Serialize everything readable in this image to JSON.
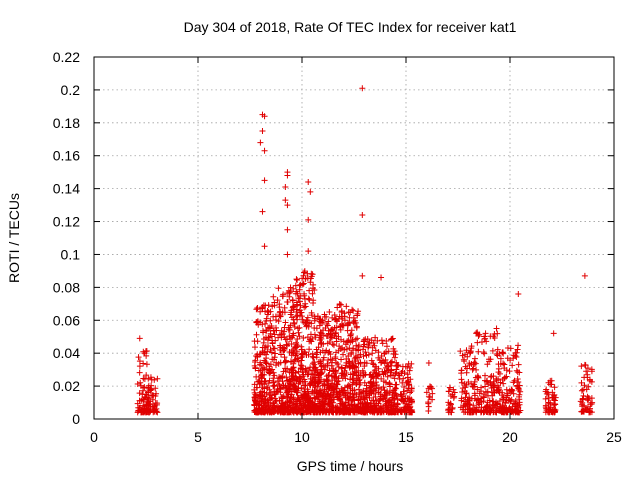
{
  "chart_data": {
    "type": "scatter",
    "title": "Day 304 of 2018, Rate Of TEC Index for receiver kat1",
    "xlabel": "GPS time / hours",
    "ylabel": "ROTI / TECUs",
    "xlim": [
      0,
      25
    ],
    "ylim": [
      0,
      0.22
    ],
    "x_ticks": [
      0,
      5,
      10,
      15,
      20,
      25
    ],
    "x_tick_labels": [
      "0",
      "5",
      "10",
      "15",
      "20",
      "25"
    ],
    "y_ticks": [
      0,
      0.02,
      0.04,
      0.06,
      0.08,
      0.1,
      0.12,
      0.14,
      0.16,
      0.18,
      0.2,
      0.22
    ],
    "y_tick_labels": [
      "0",
      "0.02",
      "0.04",
      "0.06",
      "0.08",
      "0.1",
      "0.12",
      "0.14",
      "0.16",
      "0.18",
      "0.2",
      "0.22"
    ],
    "grid": true,
    "marker": "+",
    "color": "#e00000",
    "notable_points": [
      {
        "x": 2.2,
        "y": 0.049
      },
      {
        "x": 8.1,
        "y": 0.185
      },
      {
        "x": 8.2,
        "y": 0.184
      },
      {
        "x": 8.1,
        "y": 0.175
      },
      {
        "x": 8.0,
        "y": 0.168
      },
      {
        "x": 8.2,
        "y": 0.163
      },
      {
        "x": 8.2,
        "y": 0.145
      },
      {
        "x": 8.1,
        "y": 0.126
      },
      {
        "x": 8.2,
        "y": 0.105
      },
      {
        "x": 9.3,
        "y": 0.15
      },
      {
        "x": 9.3,
        "y": 0.148
      },
      {
        "x": 9.2,
        "y": 0.141
      },
      {
        "x": 9.3,
        "y": 0.13
      },
      {
        "x": 9.2,
        "y": 0.133
      },
      {
        "x": 9.3,
        "y": 0.115
      },
      {
        "x": 9.3,
        "y": 0.1
      },
      {
        "x": 10.3,
        "y": 0.144
      },
      {
        "x": 10.4,
        "y": 0.138
      },
      {
        "x": 10.3,
        "y": 0.121
      },
      {
        "x": 10.3,
        "y": 0.102
      },
      {
        "x": 12.9,
        "y": 0.201
      },
      {
        "x": 12.9,
        "y": 0.124
      },
      {
        "x": 12.9,
        "y": 0.087
      },
      {
        "x": 13.8,
        "y": 0.086
      },
      {
        "x": 16.1,
        "y": 0.034
      },
      {
        "x": 20.4,
        "y": 0.076
      },
      {
        "x": 22.1,
        "y": 0.052
      },
      {
        "x": 23.6,
        "y": 0.087
      }
    ],
    "clusters": [
      {
        "x_range": [
          2.1,
          2.6
        ],
        "y_range": [
          0.004,
          0.042
        ],
        "density": 70
      },
      {
        "x_range": [
          2.5,
          3.05
        ],
        "y_range": [
          0.004,
          0.028
        ],
        "density": 55
      },
      {
        "x_range": [
          7.7,
          8.6
        ],
        "y_range": [
          0.004,
          0.07
        ],
        "density": 260
      },
      {
        "x_range": [
          8.6,
          9.7
        ],
        "y_range": [
          0.004,
          0.08
        ],
        "density": 320
      },
      {
        "x_range": [
          9.7,
          10.6
        ],
        "y_range": [
          0.004,
          0.09
        ],
        "density": 300
      },
      {
        "x_range": [
          10.6,
          11.6
        ],
        "y_range": [
          0.004,
          0.065
        ],
        "density": 300
      },
      {
        "x_range": [
          11.6,
          12.7
        ],
        "y_range": [
          0.004,
          0.07
        ],
        "density": 300
      },
      {
        "x_range": [
          12.7,
          13.6
        ],
        "y_range": [
          0.004,
          0.05
        ],
        "density": 200
      },
      {
        "x_range": [
          13.6,
          14.5
        ],
        "y_range": [
          0.004,
          0.05
        ],
        "density": 180
      },
      {
        "x_range": [
          14.5,
          15.3
        ],
        "y_range": [
          0.004,
          0.035
        ],
        "density": 120
      },
      {
        "x_range": [
          16.0,
          16.3
        ],
        "y_range": [
          0.004,
          0.02
        ],
        "density": 14
      },
      {
        "x_range": [
          17.0,
          17.4
        ],
        "y_range": [
          0.004,
          0.02
        ],
        "density": 22
      },
      {
        "x_range": [
          17.6,
          18.3
        ],
        "y_range": [
          0.004,
          0.045
        ],
        "density": 80
      },
      {
        "x_range": [
          18.3,
          19.5
        ],
        "y_range": [
          0.004,
          0.055
        ],
        "density": 160
      },
      {
        "x_range": [
          19.5,
          20.5
        ],
        "y_range": [
          0.004,
          0.045
        ],
        "density": 140
      },
      {
        "x_range": [
          21.7,
          22.2
        ],
        "y_range": [
          0.004,
          0.025
        ],
        "density": 55
      },
      {
        "x_range": [
          23.4,
          23.95
        ],
        "y_range": [
          0.004,
          0.033
        ],
        "density": 55
      }
    ]
  }
}
